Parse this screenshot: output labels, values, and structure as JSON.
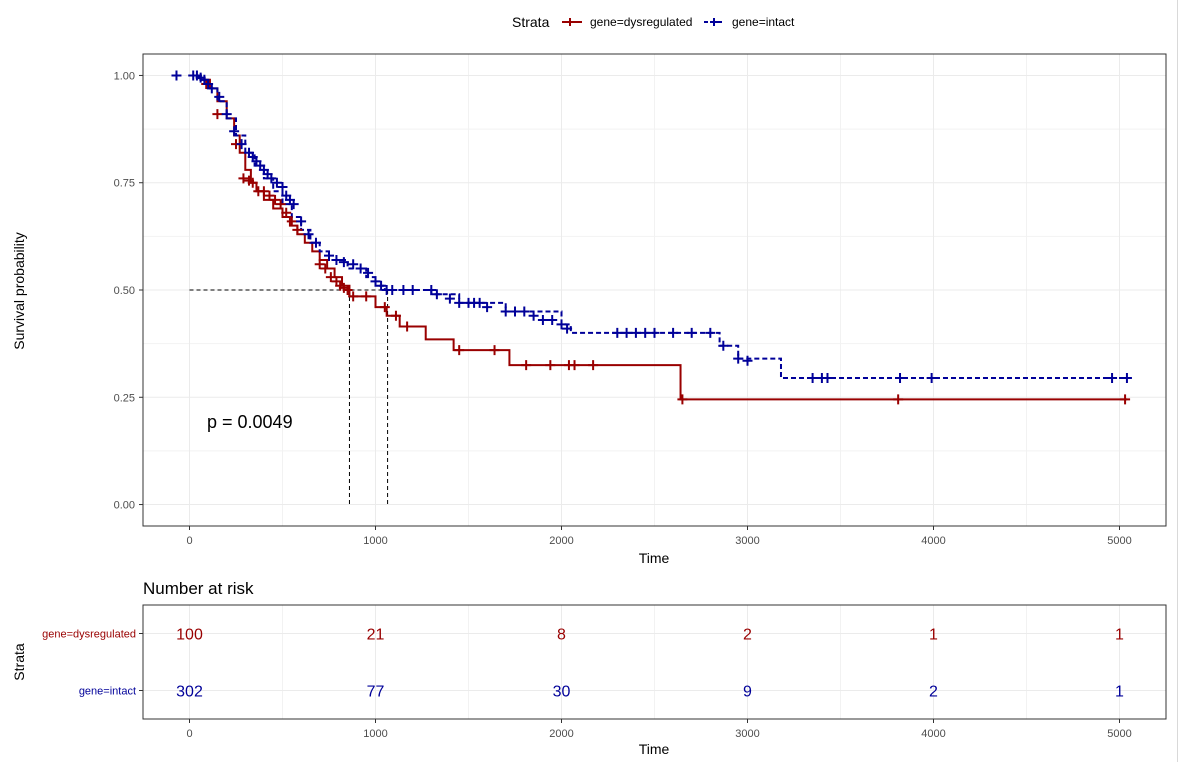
{
  "legend": {
    "title": "Strata",
    "entries": [
      {
        "label": "gene=dysregulated",
        "color": "#990000",
        "dash": "solid"
      },
      {
        "label": "gene=intact",
        "color": "#000099",
        "dash": "dashed"
      }
    ],
    "position": "top"
  },
  "pvalue_text": "p = 0.0049",
  "chart_data": [
    {
      "type": "line",
      "subtype": "kaplan-meier-step",
      "xlabel": "Time",
      "ylabel": "Survival probability",
      "xlim": [
        -250,
        5250
      ],
      "ylim": [
        -0.05,
        1.05
      ],
      "xticks": [
        0,
        1000,
        2000,
        3000,
        4000,
        5000
      ],
      "xtick_labels": [
        "0",
        "1000",
        "2000",
        "3000",
        "4000",
        "5000"
      ],
      "yticks": [
        0,
        0.25,
        0.5,
        0.75,
        1
      ],
      "ytick_labels": [
        "0.00",
        "0.25",
        "0.50",
        "0.75",
        "1.00"
      ],
      "grid": true,
      "median_lines": {
        "y": 0.5,
        "x": [
          860,
          1065
        ]
      },
      "series": [
        {
          "name": "gene=dysregulated",
          "color": "#990000",
          "dash": "solid",
          "x": [
            0,
            60,
            110,
            150,
            200,
            240,
            270,
            300,
            330,
            360,
            400,
            450,
            500,
            540,
            580,
            620,
            660,
            700,
            740,
            780,
            820,
            860,
            960,
            1000,
            1060,
            1130,
            1270,
            1420,
            1720,
            2640,
            5040
          ],
          "y": [
            1.0,
            0.99,
            0.97,
            0.94,
            0.9,
            0.86,
            0.82,
            0.78,
            0.75,
            0.73,
            0.71,
            0.69,
            0.67,
            0.65,
            0.63,
            0.61,
            0.59,
            0.57,
            0.55,
            0.53,
            0.51,
            0.485,
            0.485,
            0.46,
            0.44,
            0.415,
            0.385,
            0.36,
            0.325,
            0.245,
            0.245
          ],
          "censor_x": [
            90,
            150,
            250,
            290,
            320,
            340,
            370,
            400,
            430,
            460,
            490,
            520,
            550,
            580,
            700,
            730,
            760,
            790,
            810,
            830,
            850,
            880,
            950,
            1050,
            1110,
            1170,
            1450,
            1640,
            1810,
            1940,
            2040,
            2070,
            2170,
            2650,
            3810,
            5030
          ],
          "censor_y": [
            0.98,
            0.91,
            0.84,
            0.76,
            0.755,
            0.75,
            0.73,
            0.73,
            0.72,
            0.71,
            0.7,
            0.68,
            0.66,
            0.64,
            0.56,
            0.55,
            0.53,
            0.52,
            0.51,
            0.505,
            0.5,
            0.485,
            0.485,
            0.46,
            0.44,
            0.415,
            0.36,
            0.36,
            0.325,
            0.325,
            0.325,
            0.325,
            0.325,
            0.245,
            0.245,
            0.245
          ]
        },
        {
          "name": "gene=intact",
          "color": "#000099",
          "dash": "dashed",
          "x": [
            0,
            50,
            100,
            150,
            200,
            250,
            300,
            350,
            400,
            450,
            500,
            550,
            600,
            650,
            700,
            750,
            850,
            950,
            1000,
            1050,
            1300,
            1450,
            1700,
            2000,
            2050,
            2850,
            2950,
            3180,
            5040
          ],
          "y": [
            1.0,
            0.99,
            0.97,
            0.94,
            0.9,
            0.86,
            0.82,
            0.79,
            0.76,
            0.73,
            0.7,
            0.67,
            0.64,
            0.61,
            0.59,
            0.57,
            0.55,
            0.53,
            0.51,
            0.5,
            0.49,
            0.47,
            0.45,
            0.42,
            0.4,
            0.37,
            0.34,
            0.295,
            0.295
          ],
          "censor_x": [
            -70,
            20,
            40,
            60,
            80,
            100,
            120,
            160,
            200,
            240,
            280,
            320,
            340,
            360,
            380,
            400,
            420,
            440,
            470,
            500,
            520,
            540,
            560,
            600,
            640,
            680,
            750,
            790,
            830,
            880,
            920,
            960,
            1000,
            1030,
            1060,
            1090,
            1150,
            1200,
            1300,
            1330,
            1400,
            1450,
            1500,
            1530,
            1560,
            1600,
            1700,
            1750,
            1800,
            1850,
            1900,
            1950,
            2000,
            2030,
            2300,
            2350,
            2400,
            2450,
            2500,
            2600,
            2700,
            2800,
            2870,
            2950,
            3000,
            3350,
            3400,
            3430,
            3820,
            3990,
            4960,
            5040
          ],
          "censor_y": [
            1.0,
            1.0,
            1.0,
            0.995,
            0.99,
            0.98,
            0.97,
            0.95,
            0.91,
            0.87,
            0.84,
            0.82,
            0.81,
            0.8,
            0.79,
            0.78,
            0.77,
            0.76,
            0.75,
            0.74,
            0.72,
            0.71,
            0.7,
            0.66,
            0.63,
            0.61,
            0.58,
            0.57,
            0.565,
            0.56,
            0.55,
            0.54,
            0.52,
            0.51,
            0.5,
            0.5,
            0.5,
            0.5,
            0.5,
            0.49,
            0.48,
            0.47,
            0.47,
            0.47,
            0.47,
            0.46,
            0.45,
            0.45,
            0.45,
            0.44,
            0.43,
            0.43,
            0.42,
            0.41,
            0.4,
            0.4,
            0.4,
            0.4,
            0.4,
            0.4,
            0.4,
            0.4,
            0.37,
            0.34,
            0.335,
            0.295,
            0.295,
            0.295,
            0.295,
            0.295,
            0.295,
            0.295
          ]
        }
      ]
    },
    {
      "type": "table",
      "title": "Number at risk",
      "xlabel": "Time",
      "ylabel": "Strata",
      "xlim": [
        -250,
        5250
      ],
      "xticks": [
        0,
        1000,
        2000,
        3000,
        4000,
        5000
      ],
      "xtick_labels": [
        "0",
        "1000",
        "2000",
        "3000",
        "4000",
        "5000"
      ],
      "rows": [
        {
          "label": "gene=dysregulated",
          "color": "#990000",
          "values": [
            "100",
            "21",
            "8",
            "2",
            "1",
            "1"
          ]
        },
        {
          "label": "gene=intact",
          "color": "#000099",
          "values": [
            "302",
            "77",
            "30",
            "9",
            "2",
            "1"
          ]
        }
      ]
    }
  ]
}
